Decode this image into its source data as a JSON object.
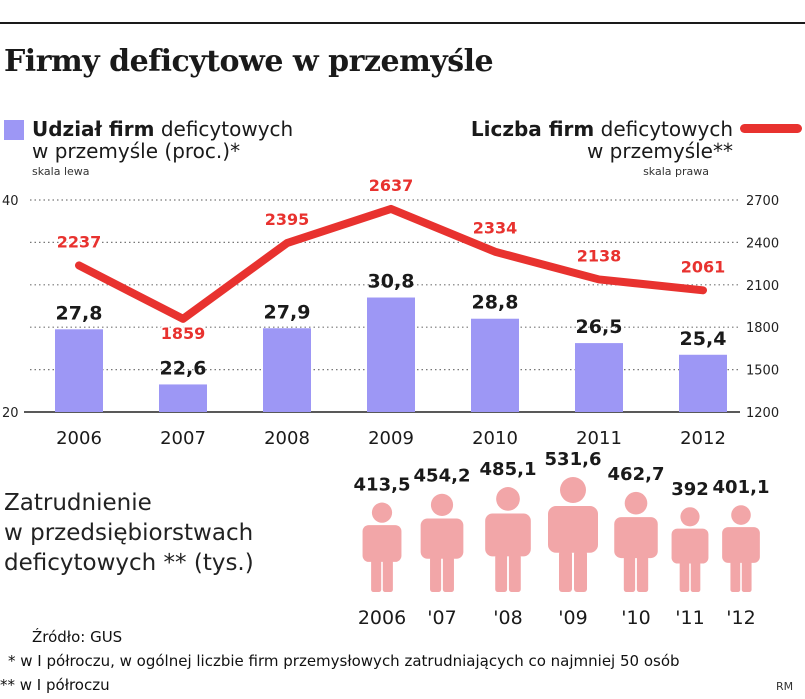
{
  "title": "Firmy deficytowe w przemyśle",
  "legend": {
    "bars_bold": "Udział firm",
    "bars_rest": " deficytowych",
    "bars_line2": "w przemyśle (proc.)*",
    "bars_scale": "skala lewa",
    "line_bold": "Liczba firm",
    "line_rest": " deficytowych",
    "line_line2": "w przemyśle**",
    "line_scale": "skala prawa"
  },
  "colors": {
    "bar": "#9d97f5",
    "line": "#e8322f",
    "figure": "#f2a6a8",
    "text": "#1a1a1a"
  },
  "chart_data": [
    {
      "type": "bar+line",
      "title": "Firmy deficytowe w przemyśle",
      "categories": [
        "2006",
        "2007",
        "2008",
        "2009",
        "2010",
        "2011",
        "2012"
      ],
      "series": [
        {
          "name": "Udział firm deficytowych w przemyśle (proc.)*",
          "kind": "bar",
          "axis": "left",
          "values": [
            27.8,
            22.6,
            27.9,
            30.8,
            28.8,
            26.5,
            25.4
          ],
          "labels": [
            "27,8",
            "22,6",
            "27,9",
            "30,8",
            "28,8",
            "26,5",
            "25,4"
          ]
        },
        {
          "name": "Liczba firm deficytowych w przemyśle**",
          "kind": "line",
          "axis": "right",
          "values": [
            2237,
            1859,
            2395,
            2637,
            2334,
            2138,
            2061
          ],
          "labels": [
            "2237",
            "1859",
            "2395",
            "2637",
            "2334",
            "2138",
            "2061"
          ]
        }
      ],
      "left_axis": {
        "ylim": [
          20,
          40
        ],
        "ticks": [
          "20",
          "40"
        ]
      },
      "right_axis": {
        "ylim": [
          1200,
          2700
        ],
        "ticks": [
          "2700",
          "2400",
          "2100",
          "1800",
          "1500",
          "1200"
        ]
      },
      "grid": "dotted",
      "legend_position": "top"
    },
    {
      "type": "pictogram",
      "title": "Zatrudnienie w przedsiębiorstwach deficytowych ** (tys.)",
      "categories": [
        "2006",
        "'07",
        "'08",
        "'09",
        "'10",
        "'11",
        "'12"
      ],
      "values": [
        413.5,
        454.2,
        485.1,
        531.6,
        462.7,
        392,
        401.1
      ],
      "labels": [
        "413,5",
        "454,2",
        "485,1",
        "531,6",
        "462,7",
        "392",
        "401,1"
      ]
    }
  ],
  "employment": {
    "label_line1": "Zatrudnienie",
    "label_line2": "w przedsiębiorstwach",
    "label_line3": "deficytowych ** (tys.)"
  },
  "footer": {
    "source": "Źródło: GUS",
    "note1": "* w I półroczu, w ogólnej liczbie firm przemysłowych zatrudniających co najmniej 50 osób",
    "note2": "** w I półroczu",
    "credit": "RM"
  }
}
